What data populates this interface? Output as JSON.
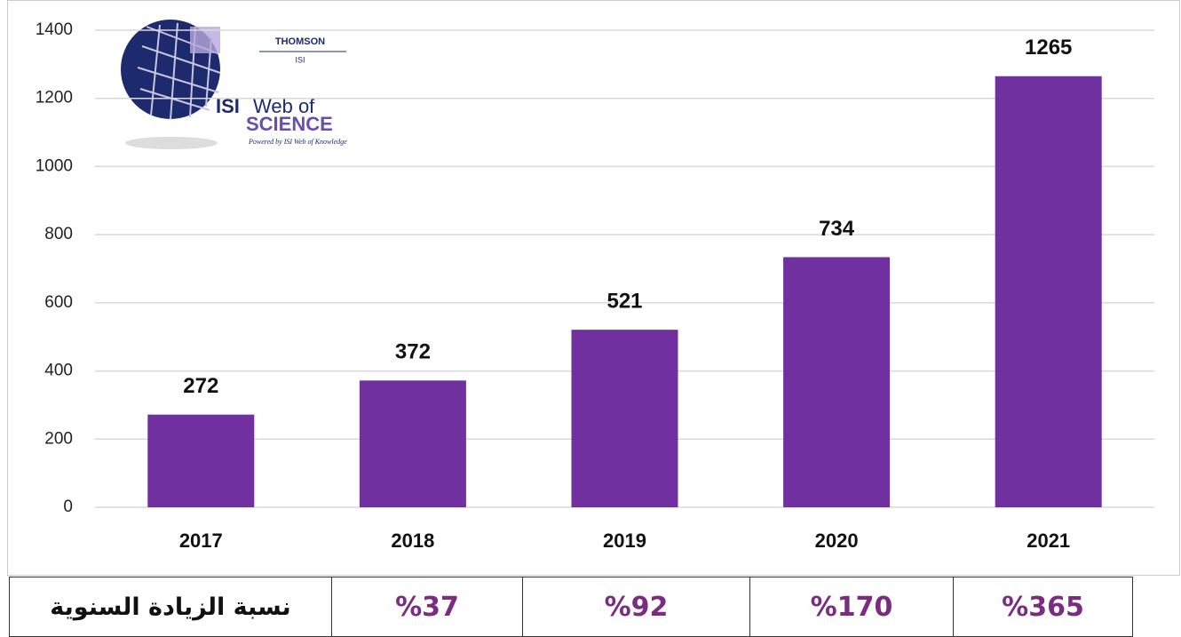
{
  "chart_data": {
    "type": "bar",
    "categories": [
      "2017",
      "2018",
      "2019",
      "2020",
      "2021"
    ],
    "values": [
      272,
      372,
      521,
      734,
      1265
    ],
    "color": "#7030a0",
    "ylim": [
      0,
      1400
    ],
    "yticks": [
      0,
      200,
      400,
      600,
      800,
      1000,
      1200,
      1400
    ],
    "grid": true,
    "logo": {
      "company": "THOMSON",
      "company_sub": "ISI",
      "name_1": "ISI",
      "name_2": "Web of",
      "name_3": "SCIENCE",
      "tagline": "Powered by ISI Web of Knowledge"
    }
  },
  "table": {
    "header": "نسبة الزيادة السنوية",
    "cells": [
      "%37",
      "%92",
      "%170",
      "%365"
    ]
  }
}
